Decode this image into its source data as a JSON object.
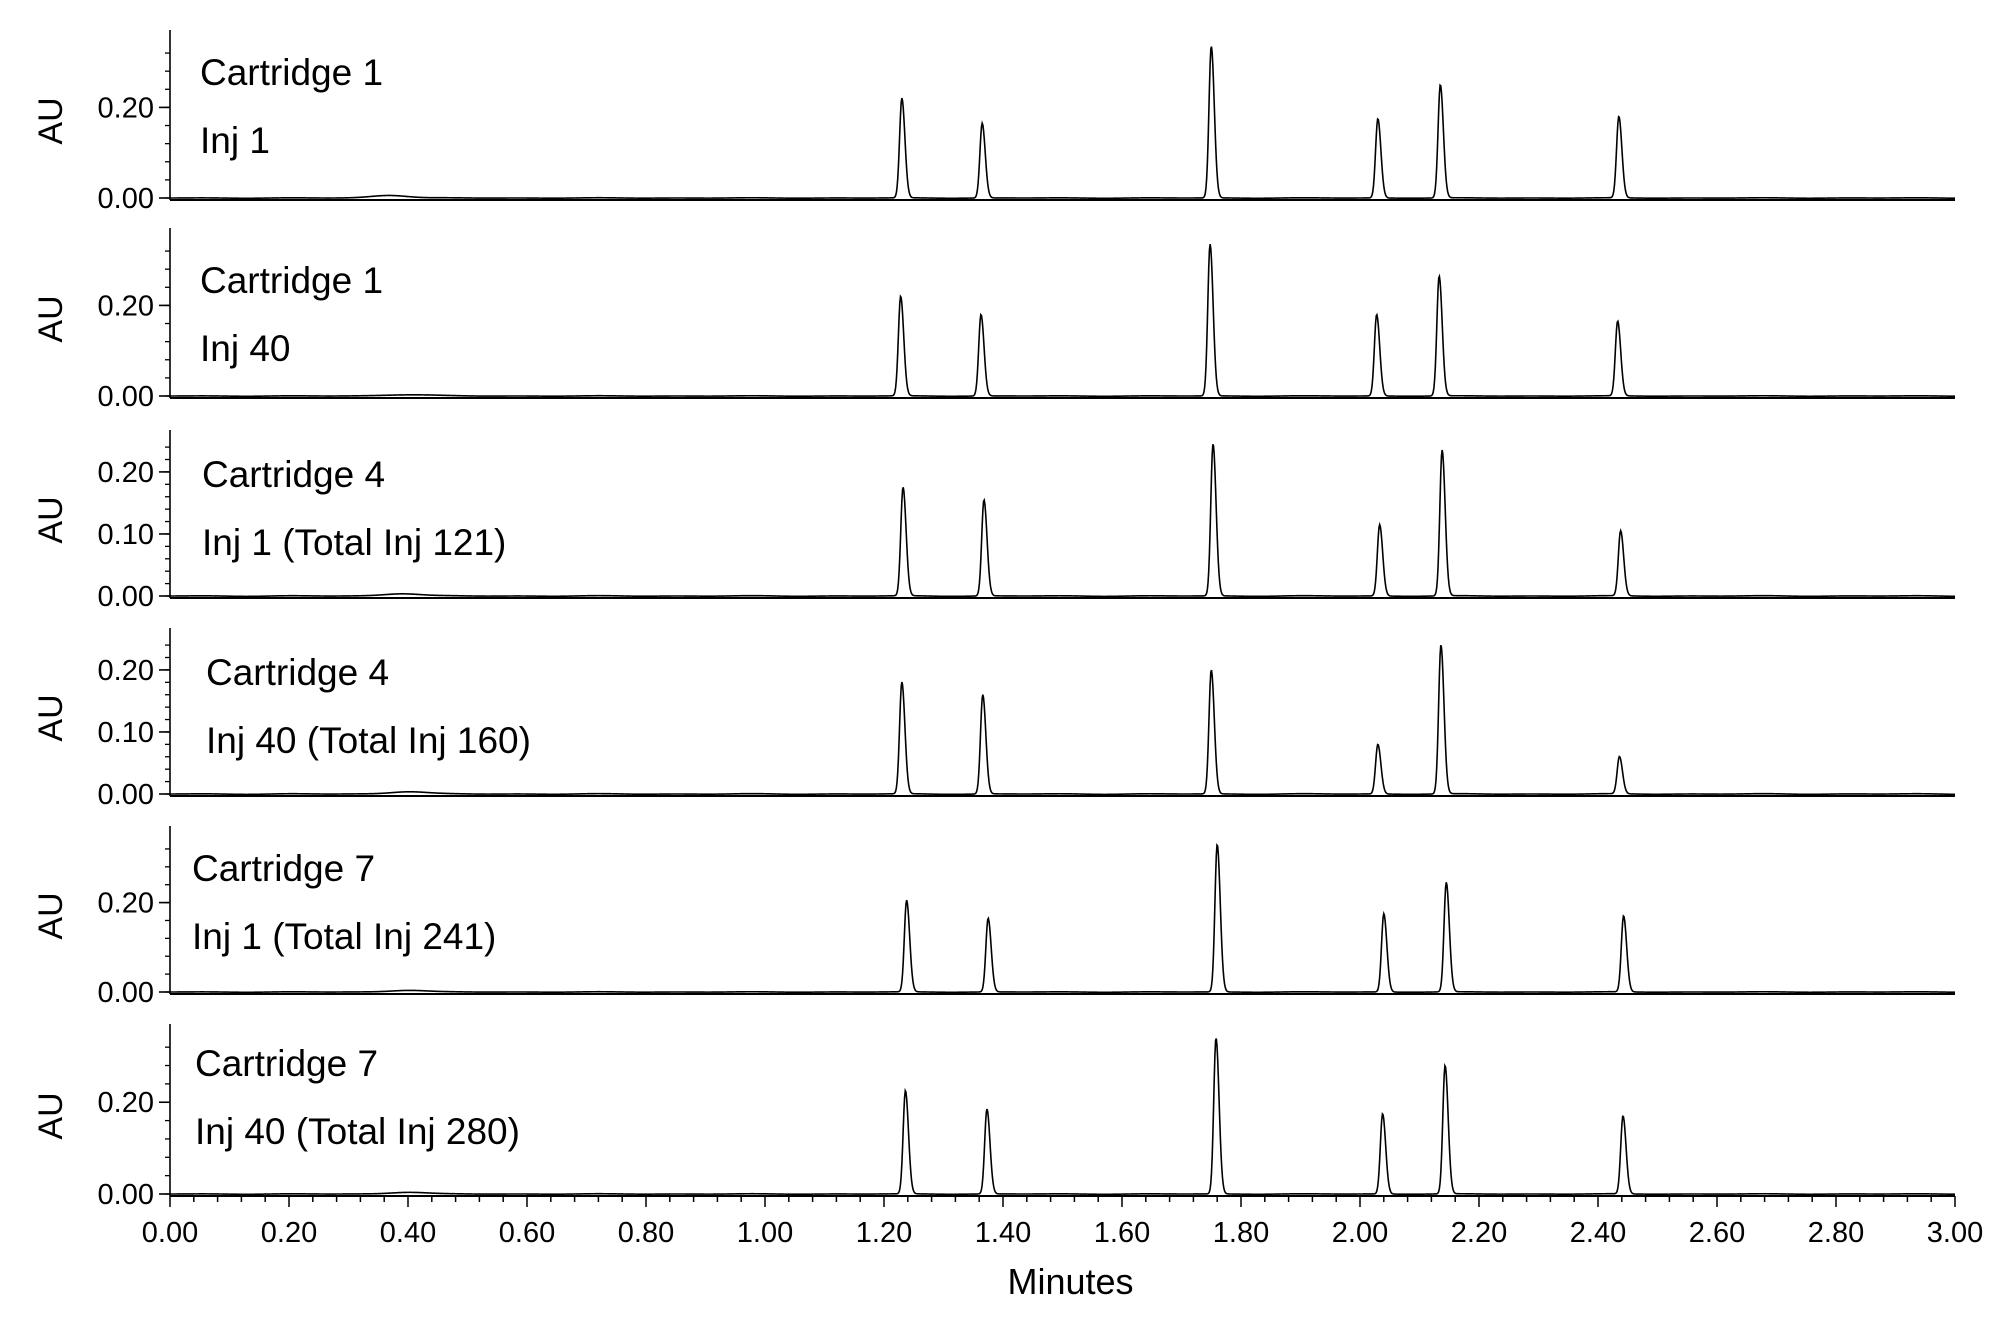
{
  "chart_data": {
    "type": "line",
    "xlabel": "Minutes",
    "xlim": [
      0.0,
      3.0
    ],
    "x_ticks": [
      "0.00",
      "0.20",
      "0.40",
      "0.60",
      "0.80",
      "1.00",
      "1.20",
      "1.40",
      "1.60",
      "1.80",
      "2.00",
      "2.20",
      "2.40",
      "2.60",
      "2.80",
      "3.00"
    ],
    "line_color": "#000000",
    "panels": [
      {
        "labels": [
          "Cartridge 1",
          "Inj 1"
        ],
        "ylabel": "AU",
        "ylim": [
          -0.005,
          0.34
        ],
        "y_ticks": [
          "0.00",
          "0.20"
        ],
        "baseline_bump": [
          {
            "x": 0.37,
            "height": 0.006,
            "width": 0.03
          }
        ],
        "peaks": [
          {
            "x": 1.23,
            "height": 0.22
          },
          {
            "x": 1.365,
            "height": 0.165
          },
          {
            "x": 1.75,
            "height": 0.335
          },
          {
            "x": 2.03,
            "height": 0.175
          },
          {
            "x": 2.135,
            "height": 0.25
          },
          {
            "x": 2.435,
            "height": 0.18
          }
        ]
      },
      {
        "labels": [
          "Cartridge 1",
          "Inj 40"
        ],
        "ylabel": "AU",
        "ylim": [
          -0.005,
          0.34
        ],
        "y_ticks": [
          "0.00",
          "0.20"
        ],
        "baseline_bump": [
          {
            "x": 0.4,
            "height": 0.003,
            "width": 0.04
          }
        ],
        "peaks": [
          {
            "x": 1.228,
            "height": 0.22
          },
          {
            "x": 1.363,
            "height": 0.18
          },
          {
            "x": 1.748,
            "height": 0.335
          },
          {
            "x": 2.028,
            "height": 0.18
          },
          {
            "x": 2.133,
            "height": 0.265
          },
          {
            "x": 2.433,
            "height": 0.165
          }
        ]
      },
      {
        "labels": [
          "Cartridge 4",
          "Inj 1 (Total Inj 121)"
        ],
        "ylabel": "AU",
        "ylim": [
          -0.004,
          0.245
        ],
        "y_ticks": [
          "0.00",
          "0.10",
          "0.20"
        ],
        "baseline_bump": [
          {
            "x": 0.39,
            "height": 0.004,
            "width": 0.03
          }
        ],
        "peaks": [
          {
            "x": 1.232,
            "height": 0.175
          },
          {
            "x": 1.368,
            "height": 0.155
          },
          {
            "x": 1.753,
            "height": 0.245
          },
          {
            "x": 2.033,
            "height": 0.115
          },
          {
            "x": 2.138,
            "height": 0.235
          },
          {
            "x": 2.438,
            "height": 0.105
          }
        ]
      },
      {
        "labels": [
          "Cartridge 4",
          "Inj 40 (Total Inj 160)"
        ],
        "ylabel": "AU",
        "ylim": [
          -0.004,
          0.245
        ],
        "y_ticks": [
          "0.00",
          "0.10",
          "0.20"
        ],
        "baseline_bump": [
          {
            "x": 0.4,
            "height": 0.004,
            "width": 0.03
          }
        ],
        "peaks": [
          {
            "x": 1.23,
            "height": 0.18
          },
          {
            "x": 1.366,
            "height": 0.16
          },
          {
            "x": 1.75,
            "height": 0.2
          },
          {
            "x": 2.03,
            "height": 0.08
          },
          {
            "x": 2.136,
            "height": 0.24
          },
          {
            "x": 2.436,
            "height": 0.06
          }
        ]
      },
      {
        "labels": [
          "Cartridge 7",
          "Inj 1 (Total Inj 241)"
        ],
        "ylabel": "AU",
        "ylim": [
          -0.005,
          0.34
        ],
        "y_ticks": [
          "0.00",
          "0.20"
        ],
        "baseline_bump": [
          {
            "x": 0.4,
            "height": 0.004,
            "width": 0.03
          }
        ],
        "peaks": [
          {
            "x": 1.238,
            "height": 0.205
          },
          {
            "x": 1.375,
            "height": 0.165
          },
          {
            "x": 1.76,
            "height": 0.33
          },
          {
            "x": 2.04,
            "height": 0.175
          },
          {
            "x": 2.145,
            "height": 0.245
          },
          {
            "x": 2.443,
            "height": 0.17
          }
        ]
      },
      {
        "labels": [
          "Cartridge 7",
          "Inj 40 (Total Inj 280)"
        ],
        "ylabel": "AU",
        "ylim": [
          -0.005,
          0.34
        ],
        "y_ticks": [
          "0.00",
          "0.20"
        ],
        "baseline_bump": [
          {
            "x": 0.4,
            "height": 0.004,
            "width": 0.03
          }
        ],
        "peaks": [
          {
            "x": 1.236,
            "height": 0.225
          },
          {
            "x": 1.373,
            "height": 0.185
          },
          {
            "x": 1.758,
            "height": 0.34
          },
          {
            "x": 2.038,
            "height": 0.175
          },
          {
            "x": 2.143,
            "height": 0.28
          },
          {
            "x": 2.442,
            "height": 0.17
          }
        ]
      }
    ]
  }
}
